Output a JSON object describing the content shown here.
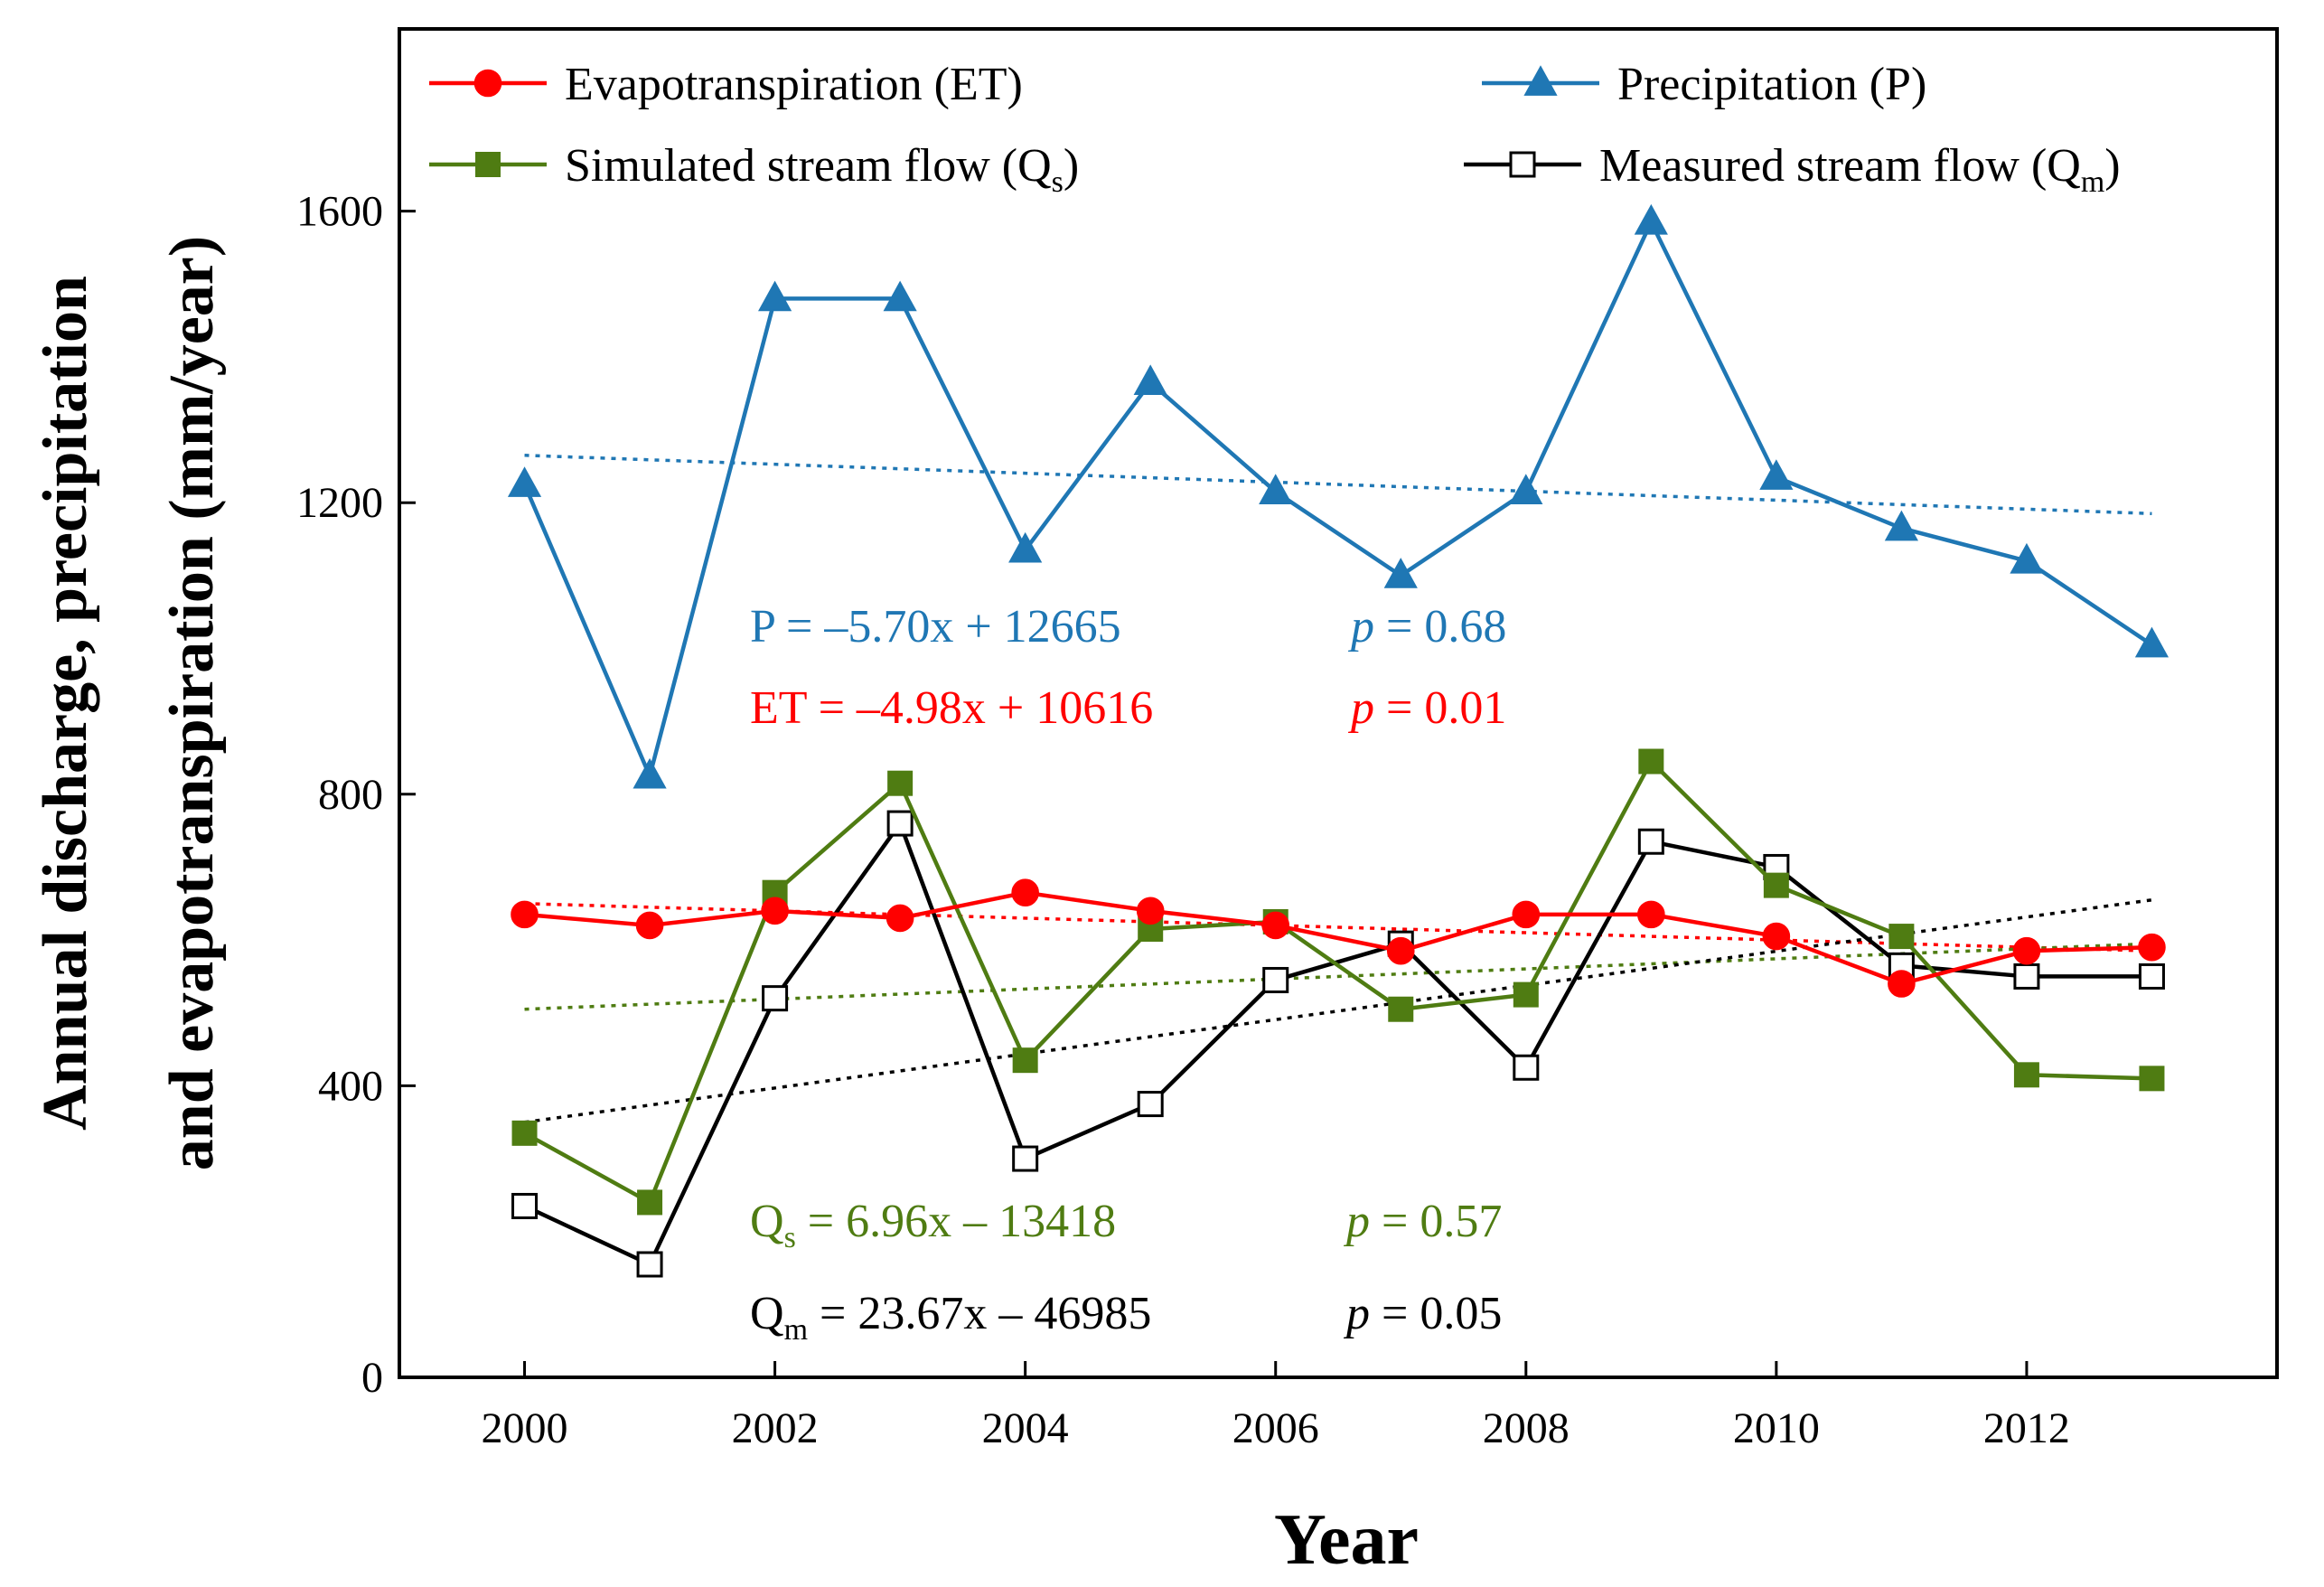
{
  "chart_data": {
    "type": "line",
    "xlabel": "Year",
    "ylabel_line1": "Annual discharge, precipitation",
    "ylabel_line2": "and evapotranspiration (mm/year)",
    "x": [
      2000,
      2001,
      2002,
      2003,
      2004,
      2005,
      2006,
      2007,
      2008,
      2009,
      2010,
      2011,
      2012,
      2013
    ],
    "xlim": [
      1999,
      2014
    ],
    "ylim": [
      0,
      1850
    ],
    "xticks": [
      2000,
      2002,
      2004,
      2006,
      2008,
      2010,
      2012
    ],
    "xtick_labels": [
      "2000",
      "2002",
      "2004",
      "2006",
      "2008",
      "2010",
      "2012"
    ],
    "yticks": [
      0,
      400,
      800,
      1200,
      1600
    ],
    "ytick_labels": [
      "0",
      "400",
      "800",
      "1200",
      "1600"
    ],
    "grid": false,
    "legend_position": "top",
    "series": [
      {
        "key": "et",
        "name": "Evapotranspiration (ET)",
        "color": "#ff0000",
        "marker": "circle",
        "values": [
          635,
          620,
          640,
          630,
          665,
          640,
          620,
          585,
          635,
          635,
          605,
          540,
          585,
          590
        ],
        "trend": [
          650,
          585
        ]
      },
      {
        "key": "p",
        "name": "Precipitation (P)",
        "color": "#1f77b4",
        "marker": "triangle",
        "values": [
          1225,
          825,
          1480,
          1480,
          1135,
          1365,
          1215,
          1100,
          1215,
          1585,
          1235,
          1165,
          1120,
          1005
        ],
        "trend": [
          1265,
          1185
        ]
      },
      {
        "key": "qs",
        "name_main": "Simulated stream flow (Q",
        "name_sub": "s",
        "name_end": ")",
        "color": "#4f7c12",
        "marker": "square",
        "values": [
          335,
          240,
          665,
          815,
          435,
          615,
          625,
          505,
          525,
          845,
          675,
          605,
          415,
          410
        ],
        "trend": [
          505,
          595
        ]
      },
      {
        "key": "qm",
        "name_main": "Measured stream flow (Q",
        "name_sub": "m",
        "name_end": ")",
        "color": "#000000",
        "marker": "open-square",
        "values": [
          235,
          155,
          520,
          760,
          300,
          375,
          545,
          595,
          425,
          735,
          700,
          565,
          550,
          550
        ],
        "trend": [
          350,
          655
        ]
      }
    ],
    "annotations": [
      {
        "key": "p",
        "eq_lhs": "P",
        "eq_rhs": " = –5.70x + 12665",
        "p_sym": "p",
        "p_val": " = 0.68",
        "color": "#1f77b4"
      },
      {
        "key": "et",
        "eq_lhs": "ET",
        "eq_rhs": " = –4.98x + 10616",
        "p_sym": "p",
        "p_val": " = 0.01",
        "color": "#ff0000"
      },
      {
        "key": "qs",
        "eq_lhs": "Q",
        "eq_sub": "s",
        "eq_rhs": " = 6.96x – 13418",
        "p_sym": "p",
        "p_val": " = 0.57",
        "color": "#4f7c12"
      },
      {
        "key": "qm",
        "eq_lhs": "Q",
        "eq_sub": "m",
        "eq_rhs": " = 23.67x – 46985",
        "p_sym": "p",
        "p_val": " = 0.05",
        "color": "#000000"
      }
    ]
  }
}
